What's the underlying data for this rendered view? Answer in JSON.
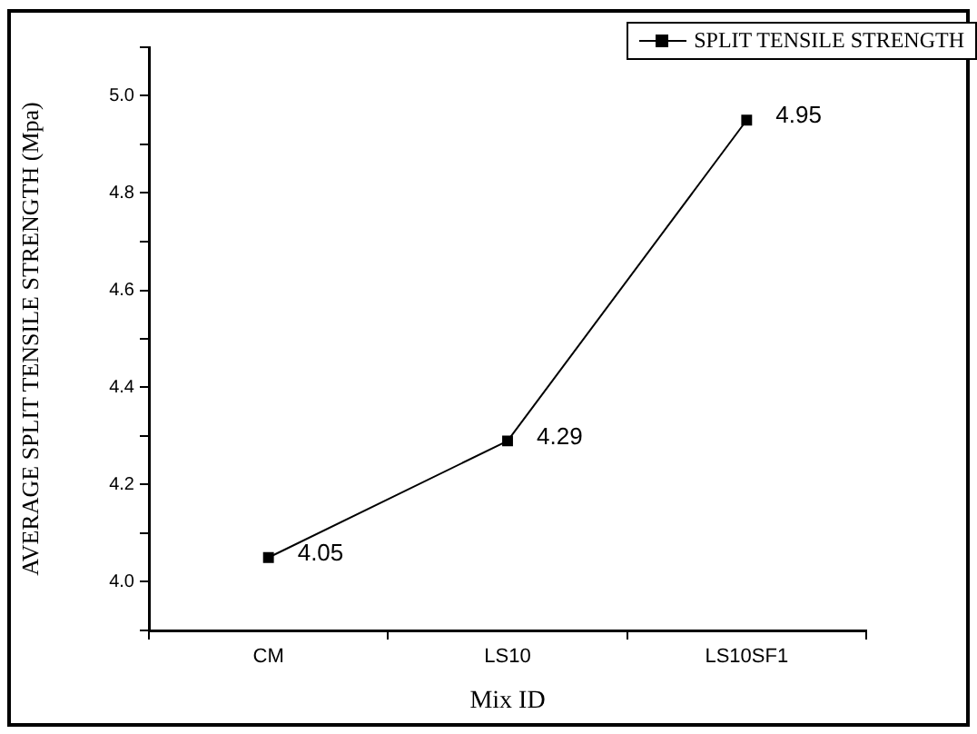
{
  "chart_data": {
    "type": "line",
    "xlabel": "Mix ID",
    "ylabel": "AVERAGE SPLIT TENSILE STRENGTH (Mpa)",
    "categories": [
      "CM",
      "LS10",
      "LS10SF1"
    ],
    "series": [
      {
        "name": "SPLIT TENSILE STRENGTH",
        "color": "#000000",
        "values": [
          4.05,
          4.29,
          4.95
        ]
      }
    ],
    "ylim": [
      3.9,
      5.1
    ],
    "yticks": [
      {
        "value": 3.9,
        "label": null
      },
      {
        "value": 4,
        "label": "4.0"
      },
      {
        "value": 4.1,
        "label": null
      },
      {
        "value": 4.2,
        "label": "4.2"
      },
      {
        "value": 4.3,
        "label": null
      },
      {
        "value": 4.4,
        "label": "4.4"
      },
      {
        "value": 4.5,
        "label": null
      },
      {
        "value": 4.6,
        "label": "4.6"
      },
      {
        "value": 4.7,
        "label": null
      },
      {
        "value": 4.8,
        "label": "4.8"
      },
      {
        "value": 4.9,
        "label": null
      },
      {
        "value": 5,
        "label": "5.0"
      },
      {
        "value": 5.1,
        "label": null
      }
    ],
    "grid": false,
    "legend": "top right",
    "marker": "square",
    "line_style": "solid",
    "data_labels": true
  }
}
